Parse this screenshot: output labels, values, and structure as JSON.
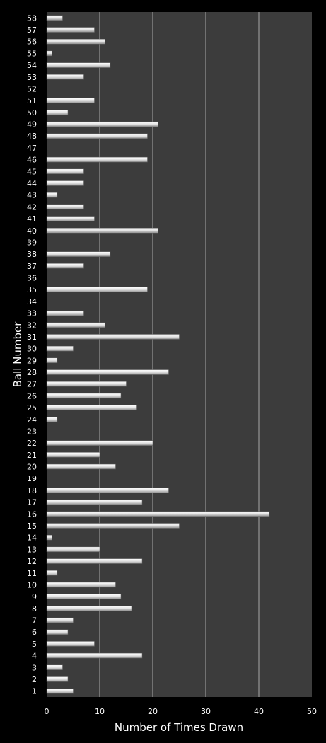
{
  "chart_data": {
    "type": "bar",
    "orientation": "horizontal",
    "title": "",
    "xlabel": "Number of Times Drawn",
    "ylabel": "Ball Number",
    "xlim": [
      0,
      50
    ],
    "x_ticks": [
      0,
      10,
      20,
      30,
      40,
      50
    ],
    "grid": true,
    "legend": "none",
    "colors": {
      "background": "#000000",
      "plot_area": "#3c3c3c",
      "gridline": "#a8a8a8",
      "bar": "#e6e6e6",
      "text": "#ffffff"
    },
    "categories": [
      "1",
      "2",
      "3",
      "4",
      "5",
      "6",
      "7",
      "8",
      "9",
      "10",
      "11",
      "12",
      "13",
      "14",
      "15",
      "16",
      "17",
      "18",
      "19",
      "20",
      "21",
      "22",
      "23",
      "24",
      "25",
      "26",
      "27",
      "28",
      "29",
      "30",
      "31",
      "32",
      "33",
      "34",
      "35",
      "36",
      "37",
      "38",
      "39",
      "40",
      "41",
      "42",
      "43",
      "44",
      "45",
      "46",
      "47",
      "48",
      "49",
      "50",
      "51",
      "52",
      "53",
      "54",
      "55",
      "56",
      "57",
      "58"
    ],
    "values": [
      5,
      4,
      3,
      18,
      9,
      4,
      5,
      16,
      14,
      13,
      2,
      18,
      10,
      1,
      25,
      42,
      18,
      23,
      0,
      13,
      10,
      20,
      0,
      2,
      17,
      14,
      15,
      23,
      2,
      5,
      25,
      11,
      7,
      0,
      19,
      0,
      7,
      12,
      0,
      21,
      9,
      7,
      2,
      7,
      7,
      19,
      0,
      19,
      21,
      4,
      9,
      0,
      7,
      12,
      1,
      11,
      9,
      3
    ]
  }
}
